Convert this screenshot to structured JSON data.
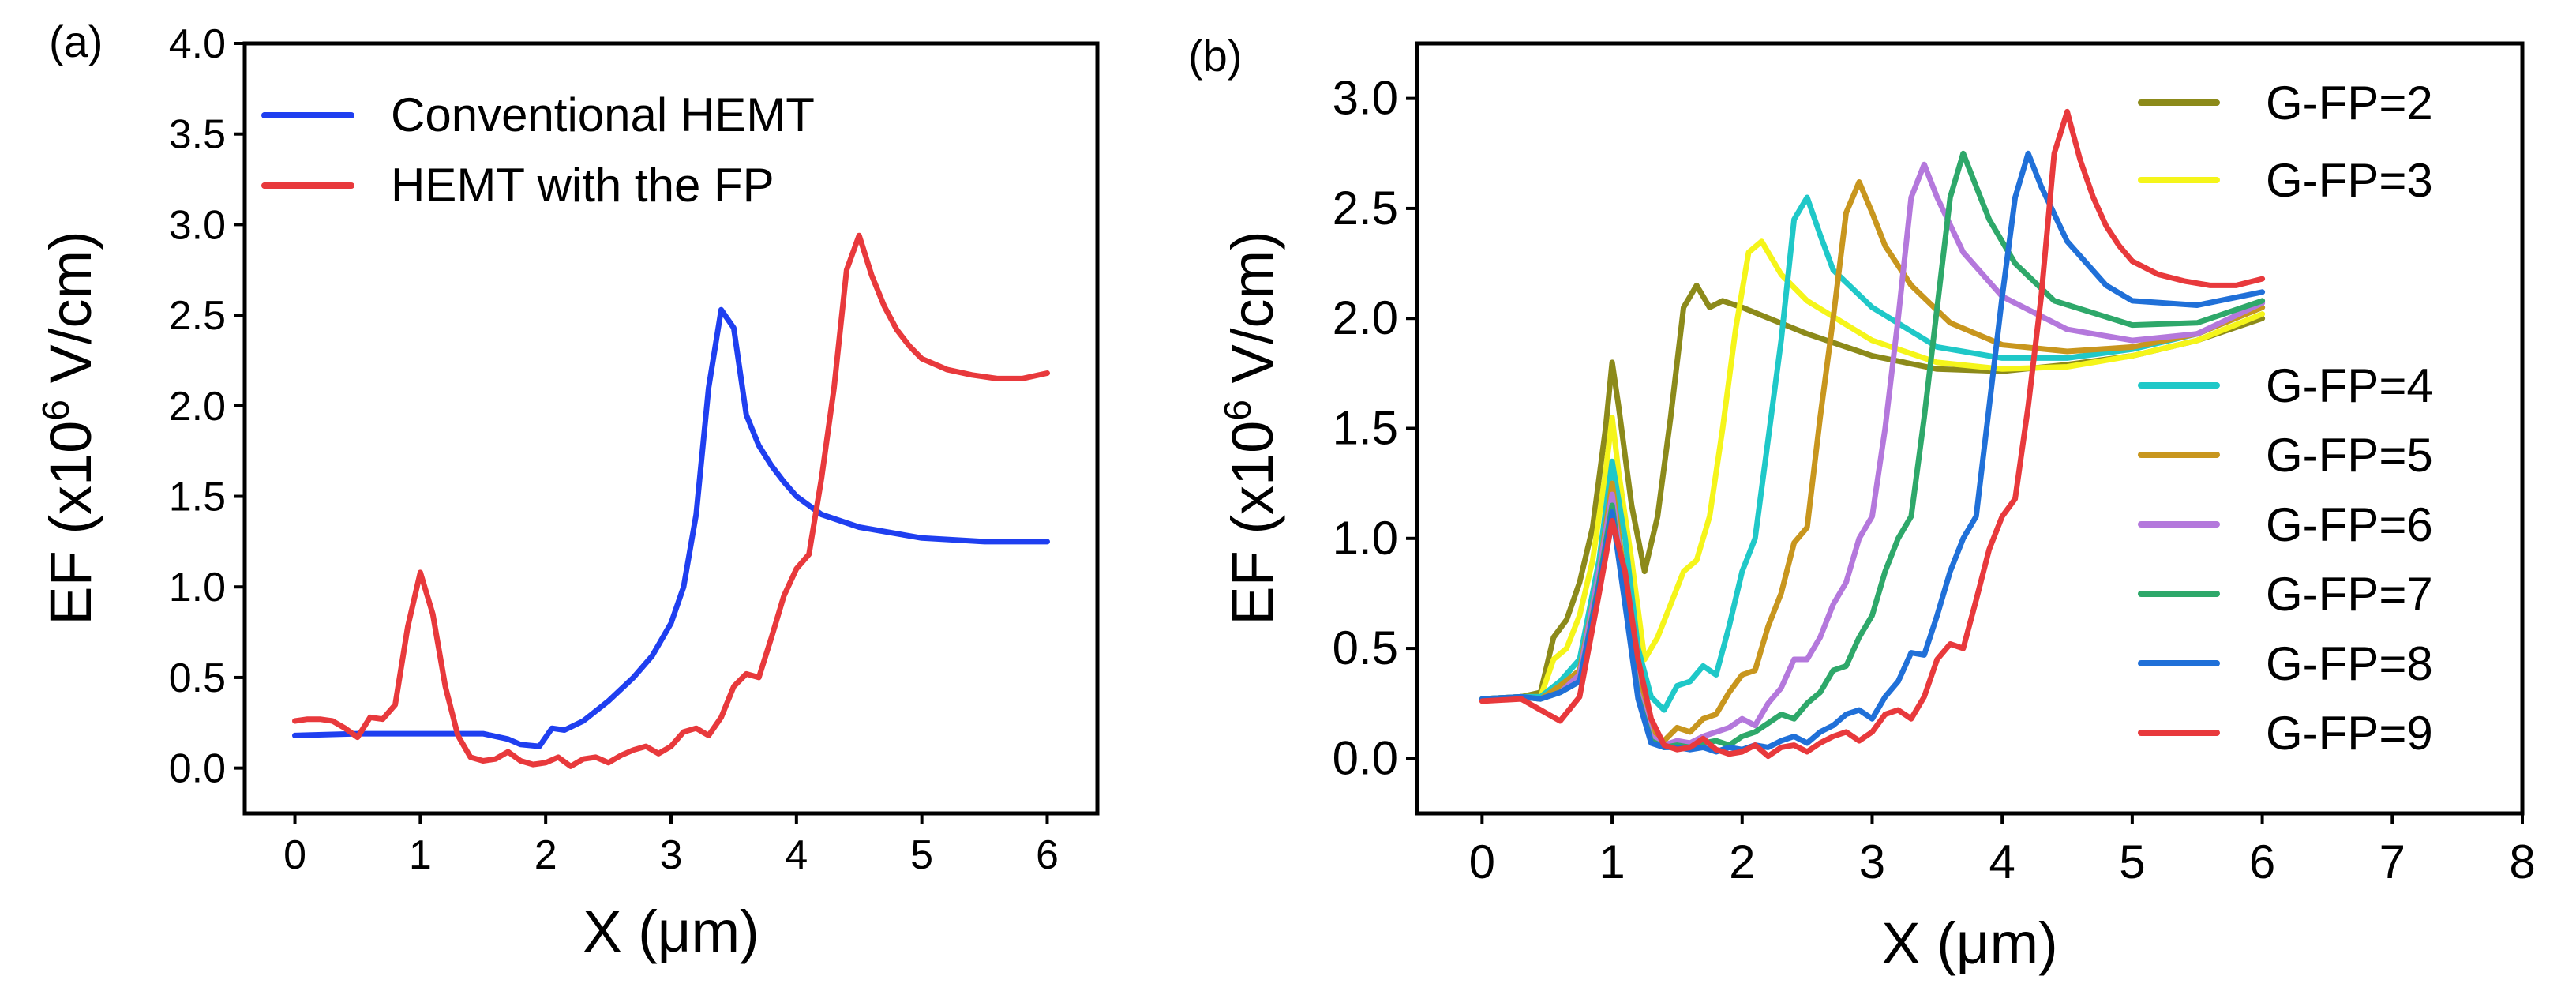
{
  "chart_data": [
    {
      "panel_label": "(a)",
      "type": "line",
      "xlabel": "X (μm)",
      "ylabel": "EF (x10^6 V/cm)",
      "ylabel_parts": [
        "EF (x10",
        "6",
        " V/cm)"
      ],
      "xlim": [
        -0.4,
        6.4
      ],
      "ylim": [
        -0.25,
        4.0
      ],
      "xticks": [
        0,
        1,
        2,
        3,
        4,
        5,
        6
      ],
      "xtick_labels": [
        "0",
        "1",
        "2",
        "3",
        "4",
        "5",
        "6"
      ],
      "yticks": [
        0.0,
        0.5,
        1.0,
        1.5,
        2.0,
        2.5,
        3.0,
        3.5,
        4.0
      ],
      "ytick_labels": [
        "0.0",
        "0.5",
        "1.0",
        "1.5",
        "2.0",
        "2.5",
        "3.0",
        "3.5",
        "4.0"
      ],
      "legend": "top-left",
      "series": [
        {
          "name": "Conventional HEMT",
          "color": "#1f3ff0",
          "x": [
            0,
            0.5,
            1.0,
            1.5,
            1.7,
            1.8,
            1.95,
            2.05,
            2.15,
            2.3,
            2.5,
            2.7,
            2.85,
            3.0,
            3.1,
            3.2,
            3.3,
            3.4,
            3.5,
            3.6,
            3.7,
            3.8,
            3.9,
            4.0,
            4.2,
            4.5,
            5.0,
            5.5,
            6.0
          ],
          "y": [
            0.18,
            0.19,
            0.19,
            0.19,
            0.16,
            0.13,
            0.12,
            0.22,
            0.21,
            0.26,
            0.37,
            0.5,
            0.62,
            0.8,
            1.0,
            1.4,
            2.1,
            2.53,
            2.43,
            1.95,
            1.78,
            1.67,
            1.58,
            1.5,
            1.4,
            1.33,
            1.27,
            1.25,
            1.25
          ]
        },
        {
          "name": "HEMT with the FP",
          "color": "#e8393c",
          "x": [
            0,
            0.1,
            0.2,
            0.3,
            0.4,
            0.5,
            0.6,
            0.7,
            0.8,
            0.9,
            1.0,
            1.1,
            1.2,
            1.3,
            1.4,
            1.5,
            1.6,
            1.7,
            1.8,
            1.9,
            2.0,
            2.1,
            2.2,
            2.3,
            2.4,
            2.5,
            2.6,
            2.7,
            2.8,
            2.9,
            3.0,
            3.1,
            3.2,
            3.3,
            3.4,
            3.5,
            3.6,
            3.7,
            3.8,
            3.9,
            4.0,
            4.1,
            4.2,
            4.3,
            4.4,
            4.5,
            4.6,
            4.7,
            4.8,
            4.9,
            5.0,
            5.2,
            5.4,
            5.6,
            5.8,
            6.0
          ],
          "y": [
            0.26,
            0.27,
            0.27,
            0.26,
            0.22,
            0.17,
            0.28,
            0.27,
            0.35,
            0.78,
            1.08,
            0.85,
            0.45,
            0.18,
            0.06,
            0.04,
            0.05,
            0.09,
            0.04,
            0.02,
            0.03,
            0.06,
            0.01,
            0.05,
            0.06,
            0.03,
            0.07,
            0.1,
            0.12,
            0.08,
            0.12,
            0.2,
            0.22,
            0.18,
            0.28,
            0.45,
            0.52,
            0.5,
            0.72,
            0.95,
            1.1,
            1.18,
            1.6,
            2.1,
            2.75,
            2.94,
            2.72,
            2.55,
            2.42,
            2.33,
            2.26,
            2.2,
            2.17,
            2.15,
            2.15,
            2.18
          ]
        }
      ]
    },
    {
      "panel_label": "(b)",
      "type": "line",
      "xlabel": "X (μm)",
      "ylabel": "EF (x10^6 V/cm)",
      "ylabel_parts": [
        "EF (x10",
        "6",
        " V/cm)"
      ],
      "xlim": [
        -0.5,
        8.0
      ],
      "ylim": [
        -0.25,
        3.25
      ],
      "xticks": [
        0,
        1,
        2,
        3,
        4,
        5,
        6,
        7,
        8
      ],
      "xtick_labels": [
        "0",
        "1",
        "2",
        "3",
        "4",
        "5",
        "6",
        "7",
        "8"
      ],
      "yticks": [
        0.0,
        0.5,
        1.0,
        1.5,
        2.0,
        2.5,
        3.0
      ],
      "ytick_labels": [
        "0.0",
        "0.5",
        "1.0",
        "1.5",
        "2.0",
        "2.5",
        "3.0"
      ],
      "legend": "right",
      "series": [
        {
          "name": "G-FP=2",
          "color": "#8c8a1a",
          "x": [
            0,
            0.3,
            0.45,
            0.55,
            0.65,
            0.75,
            0.85,
            0.95,
            1.0,
            1.05,
            1.15,
            1.25,
            1.35,
            1.45,
            1.55,
            1.65,
            1.75,
            1.85,
            2.0,
            2.5,
            3.0,
            3.5,
            4.0,
            4.5,
            5.0,
            5.5,
            6.0
          ],
          "y": [
            0.27,
            0.28,
            0.3,
            0.55,
            0.63,
            0.8,
            1.05,
            1.5,
            1.8,
            1.6,
            1.15,
            0.85,
            1.1,
            1.55,
            2.05,
            2.15,
            2.05,
            2.08,
            2.05,
            1.93,
            1.83,
            1.77,
            1.76,
            1.79,
            1.83,
            1.9,
            2.0
          ]
        },
        {
          "name": "G-FP=3",
          "color": "#f5f51a",
          "x": [
            0,
            0.3,
            0.45,
            0.55,
            0.65,
            0.75,
            0.85,
            0.95,
            1.0,
            1.05,
            1.15,
            1.25,
            1.35,
            1.45,
            1.55,
            1.65,
            1.75,
            1.85,
            1.95,
            2.05,
            2.15,
            2.3,
            2.5,
            3.0,
            3.5,
            4.0,
            4.5,
            5.0,
            5.5,
            6.0
          ],
          "y": [
            0.27,
            0.28,
            0.28,
            0.45,
            0.5,
            0.65,
            0.9,
            1.3,
            1.55,
            1.3,
            0.9,
            0.45,
            0.55,
            0.7,
            0.85,
            0.9,
            1.1,
            1.5,
            1.95,
            2.3,
            2.35,
            2.2,
            2.08,
            1.9,
            1.8,
            1.77,
            1.78,
            1.83,
            1.9,
            2.02
          ]
        },
        {
          "name": "G-FP=4",
          "color": "#1fc8c8",
          "x": [
            0,
            0.3,
            0.45,
            0.6,
            0.75,
            0.9,
            1.0,
            1.1,
            1.2,
            1.3,
            1.4,
            1.5,
            1.6,
            1.7,
            1.8,
            1.9,
            2.0,
            2.1,
            2.2,
            2.3,
            2.4,
            2.5,
            2.6,
            2.7,
            3.0,
            3.5,
            4.0,
            4.5,
            5.0,
            5.5,
            6.0
          ],
          "y": [
            0.27,
            0.28,
            0.28,
            0.35,
            0.45,
            0.9,
            1.35,
            1.0,
            0.5,
            0.28,
            0.22,
            0.33,
            0.35,
            0.42,
            0.38,
            0.6,
            0.85,
            1.0,
            1.45,
            1.9,
            2.45,
            2.55,
            2.38,
            2.22,
            2.05,
            1.87,
            1.82,
            1.82,
            1.86,
            1.93,
            2.05
          ]
        },
        {
          "name": "G-FP=5",
          "color": "#c8961e",
          "x": [
            0,
            0.3,
            0.45,
            0.6,
            0.75,
            0.9,
            1.0,
            1.1,
            1.2,
            1.3,
            1.4,
            1.5,
            1.6,
            1.7,
            1.8,
            1.9,
            2.0,
            2.1,
            2.2,
            2.3,
            2.4,
            2.5,
            2.6,
            2.7,
            2.8,
            2.9,
            3.0,
            3.1,
            3.3,
            3.6,
            4.0,
            4.5,
            5.0,
            5.5,
            6.0
          ],
          "y": [
            0.27,
            0.28,
            0.27,
            0.33,
            0.4,
            0.85,
            1.25,
            0.8,
            0.35,
            0.12,
            0.08,
            0.14,
            0.12,
            0.18,
            0.2,
            0.3,
            0.38,
            0.4,
            0.6,
            0.75,
            0.98,
            1.05,
            1.55,
            2.0,
            2.48,
            2.62,
            2.48,
            2.33,
            2.15,
            1.98,
            1.88,
            1.85,
            1.87,
            1.93,
            2.05
          ]
        },
        {
          "name": "G-FP=6",
          "color": "#b478dc",
          "x": [
            0,
            0.3,
            0.45,
            0.6,
            0.75,
            0.9,
            1.0,
            1.1,
            1.2,
            1.3,
            1.4,
            1.5,
            1.6,
            1.7,
            1.8,
            1.9,
            2.0,
            2.1,
            2.2,
            2.3,
            2.4,
            2.5,
            2.6,
            2.7,
            2.8,
            2.9,
            3.0,
            3.1,
            3.2,
            3.3,
            3.4,
            3.5,
            3.7,
            4.0,
            4.5,
            5.0,
            5.5,
            6.0
          ],
          "y": [
            0.27,
            0.28,
            0.27,
            0.3,
            0.38,
            0.85,
            1.2,
            0.75,
            0.3,
            0.1,
            0.06,
            0.08,
            0.07,
            0.1,
            0.12,
            0.14,
            0.18,
            0.15,
            0.25,
            0.32,
            0.45,
            0.45,
            0.55,
            0.7,
            0.8,
            1.0,
            1.1,
            1.5,
            2.0,
            2.55,
            2.7,
            2.55,
            2.3,
            2.1,
            1.95,
            1.9,
            1.93,
            2.07
          ]
        },
        {
          "name": "G-FP=7",
          "color": "#2ea86a",
          "x": [
            0,
            0.3,
            0.45,
            0.6,
            0.75,
            0.9,
            1.0,
            1.1,
            1.2,
            1.3,
            1.4,
            1.5,
            1.6,
            1.7,
            1.8,
            1.9,
            2.0,
            2.1,
            2.2,
            2.3,
            2.4,
            2.5,
            2.6,
            2.7,
            2.8,
            2.9,
            3.0,
            3.1,
            3.2,
            3.3,
            3.4,
            3.5,
            3.6,
            3.7,
            3.8,
            3.9,
            4.1,
            4.4,
            5.0,
            5.5,
            6.0
          ],
          "y": [
            0.27,
            0.28,
            0.27,
            0.3,
            0.35,
            0.8,
            1.15,
            0.72,
            0.28,
            0.08,
            0.05,
            0.06,
            0.05,
            0.07,
            0.08,
            0.06,
            0.1,
            0.12,
            0.16,
            0.2,
            0.18,
            0.25,
            0.3,
            0.4,
            0.42,
            0.55,
            0.65,
            0.85,
            1.0,
            1.1,
            1.55,
            2.05,
            2.55,
            2.75,
            2.6,
            2.45,
            2.25,
            2.08,
            1.97,
            1.98,
            2.08
          ]
        },
        {
          "name": "G-FP=8",
          "color": "#2070d8",
          "x": [
            0,
            0.3,
            0.45,
            0.6,
            0.75,
            0.9,
            1.0,
            1.1,
            1.2,
            1.3,
            1.4,
            1.5,
            1.6,
            1.7,
            1.8,
            1.9,
            2.0,
            2.1,
            2.2,
            2.3,
            2.4,
            2.5,
            2.6,
            2.7,
            2.8,
            2.9,
            3.0,
            3.1,
            3.2,
            3.3,
            3.4,
            3.5,
            3.6,
            3.7,
            3.8,
            3.9,
            4.0,
            4.1,
            4.2,
            4.3,
            4.5,
            4.8,
            5.0,
            5.5,
            6.0
          ],
          "y": [
            0.27,
            0.28,
            0.27,
            0.3,
            0.35,
            0.78,
            1.12,
            0.7,
            0.27,
            0.07,
            0.05,
            0.05,
            0.04,
            0.05,
            0.03,
            0.05,
            0.04,
            0.06,
            0.05,
            0.08,
            0.1,
            0.07,
            0.12,
            0.15,
            0.2,
            0.22,
            0.18,
            0.28,
            0.35,
            0.48,
            0.47,
            0.65,
            0.85,
            1.0,
            1.1,
            1.6,
            2.1,
            2.55,
            2.75,
            2.6,
            2.35,
            2.15,
            2.08,
            2.06,
            2.12
          ]
        },
        {
          "name": "G-FP=9",
          "color": "#e8393c",
          "x": [
            0,
            0.3,
            0.45,
            0.6,
            0.75,
            0.9,
            1.0,
            1.1,
            1.2,
            1.3,
            1.4,
            1.5,
            1.6,
            1.7,
            1.8,
            1.9,
            2.0,
            2.1,
            2.2,
            2.3,
            2.4,
            2.5,
            2.6,
            2.7,
            2.8,
            2.9,
            3.0,
            3.1,
            3.2,
            3.3,
            3.4,
            3.5,
            3.6,
            3.7,
            3.8,
            3.9,
            4.0,
            4.1,
            4.2,
            4.3,
            4.4,
            4.5,
            4.6,
            4.7,
            4.8,
            4.9,
            5.0,
            5.2,
            5.4,
            5.6,
            5.8,
            6.0
          ],
          "y": [
            0.26,
            0.27,
            0.22,
            0.17,
            0.28,
            0.75,
            1.08,
            0.85,
            0.45,
            0.18,
            0.06,
            0.04,
            0.05,
            0.09,
            0.04,
            0.02,
            0.03,
            0.06,
            0.01,
            0.05,
            0.06,
            0.03,
            0.07,
            0.1,
            0.12,
            0.08,
            0.12,
            0.2,
            0.22,
            0.18,
            0.28,
            0.45,
            0.52,
            0.5,
            0.72,
            0.95,
            1.1,
            1.18,
            1.6,
            2.1,
            2.75,
            2.94,
            2.72,
            2.55,
            2.42,
            2.33,
            2.26,
            2.2,
            2.17,
            2.15,
            2.15,
            2.18
          ]
        }
      ]
    }
  ]
}
